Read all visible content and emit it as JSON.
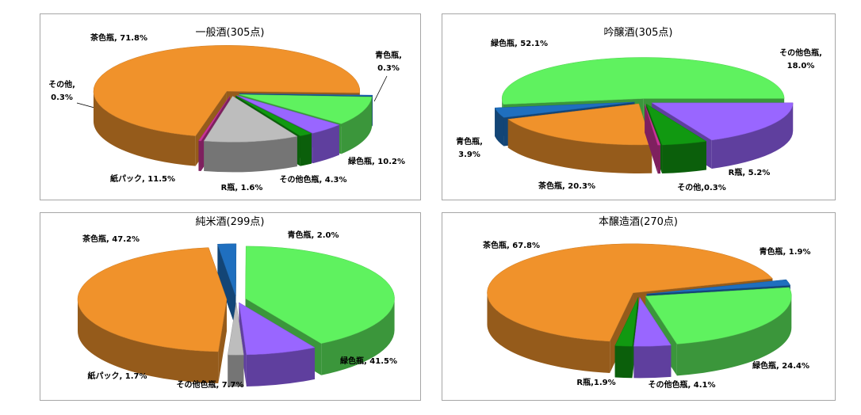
{
  "chart_data": [
    {
      "type": "pie",
      "title": "一般酒(305点)",
      "values": [
        0.3,
        10.2,
        4.3,
        1.6,
        11.5,
        0.3,
        71.8
      ],
      "value_labels": [
        "青色瓶,\n0.3%",
        "緑色瓶, 10.2%",
        "その他色瓶, 4.3%",
        "R瓶, 1.6%",
        "紙パック, 11.5%",
        "その他,\n0.3%",
        "茶色瓶, 71.8%"
      ],
      "colors": [
        "#1f6fbf",
        "#5ff25f",
        "#9966ff",
        "#119911",
        "#bdbdbd",
        "#cc3399",
        "#f0922b"
      ]
    },
    {
      "type": "pie",
      "title": "吟醸酒(305点)",
      "values": [
        52.1,
        18.0,
        5.2,
        0.3,
        20.3,
        3.9
      ],
      "value_labels": [
        "緑色瓶, 52.1%",
        "その他色瓶,\n18.0%",
        "R瓶, 5.2%",
        "その他,0.3%",
        "茶色瓶, 20.3%",
        "青色瓶,\n3.9%"
      ],
      "colors": [
        "#5ff25f",
        "#9966ff",
        "#119911",
        "#cc3399",
        "#f0922b",
        "#1f6fbf"
      ]
    },
    {
      "type": "pie",
      "title": "純米酒(299点)",
      "values": [
        2.0,
        41.5,
        7.7,
        1.7,
        47.2
      ],
      "value_labels": [
        "青色瓶, 2.0%",
        "緑色瓶, 41.5%",
        "その他色瓶, 7.7%",
        "紙パック, 1.7%",
        "茶色瓶, 47.2%"
      ],
      "colors": [
        "#1f6fbf",
        "#5ff25f",
        "#9966ff",
        "#bdbdbd",
        "#f0922b"
      ]
    },
    {
      "type": "pie",
      "title": "本醸造酒(270点)",
      "values": [
        1.9,
        24.4,
        4.1,
        1.9,
        67.8
      ],
      "value_labels": [
        "青色瓶, 1.9%",
        "緑色瓶, 24.4%",
        "その他色瓶, 4.1%",
        "R瓶,1.9%",
        "茶色瓶, 67.8%"
      ],
      "colors": [
        "#1f6fbf",
        "#5ff25f",
        "#9966ff",
        "#119911",
        "#f0922b"
      ]
    }
  ]
}
